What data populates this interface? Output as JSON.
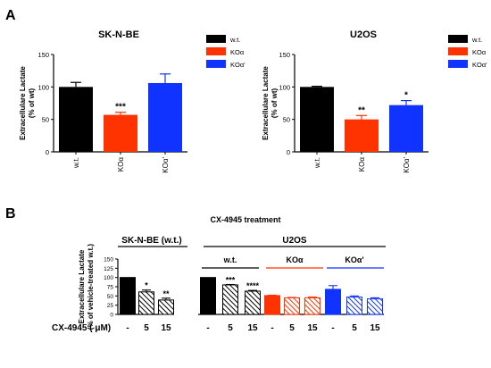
{
  "panels": {
    "a": "A",
    "b": "B"
  },
  "chart_data": [
    {
      "type": "bar",
      "panel": "A",
      "title": "SK-N-BE",
      "ylabel_lines": [
        "Extracellulare Lactate",
        "(% of wt)"
      ],
      "categories": [
        "w.t.",
        "KOα",
        "KOα'"
      ],
      "values": [
        100,
        57,
        106
      ],
      "errors": [
        7,
        4,
        14
      ],
      "colors": [
        "#000000",
        "#ff3300",
        "#1133ff"
      ],
      "significance": [
        "",
        "***",
        ""
      ],
      "ylim": [
        0,
        150
      ],
      "yticks": [
        0,
        50,
        100,
        150
      ],
      "legend": [
        "w.t.",
        "KOα",
        "KOα'"
      ],
      "legend_colors": [
        "#000000",
        "#ff3300",
        "#1133ff"
      ],
      "legend_position": "right"
    },
    {
      "type": "bar",
      "panel": "A",
      "title": "U2OS",
      "ylabel_lines": [
        "Extracellulare Lactate",
        "(% of wt)"
      ],
      "categories": [
        "w.t.",
        "KOα",
        "KOα'"
      ],
      "values": [
        100,
        50,
        72
      ],
      "errors": [
        1,
        6,
        7
      ],
      "colors": [
        "#000000",
        "#ff3300",
        "#1133ff"
      ],
      "significance": [
        "",
        "**",
        "*"
      ],
      "ylim": [
        0,
        150
      ],
      "yticks": [
        0,
        50,
        100,
        150
      ],
      "legend": [
        "w.t.",
        "KOα",
        "KOα'"
      ],
      "legend_colors": [
        "#000000",
        "#ff3300",
        "#1133ff"
      ],
      "legend_position": "right"
    },
    {
      "type": "bar",
      "panel": "B",
      "title": "CX-4945 treatment",
      "ylabel_lines": [
        "Extracellulare Lactate",
        "(% of vehicle-treated w.t.)"
      ],
      "ylim": [
        0,
        150
      ],
      "yticks": [
        0,
        25,
        50,
        75,
        100,
        125,
        150
      ],
      "xaxis_label": "CX-4945 ( μM)",
      "group_labels": {
        "sknbe": "SK-N-BE (w.t.)",
        "u2os": "U2OS",
        "wt": "w.t.",
        "koa": "KOα",
        "koap": "KOα'"
      },
      "groups": [
        {
          "name": "SK-N-BE (w.t.)",
          "dose": [
            "-",
            "5",
            "15"
          ],
          "values": [
            100,
            61,
            39
          ],
          "errors": [
            0,
            5,
            5
          ],
          "significance": [
            "",
            "*",
            "**"
          ],
          "color": "#000000"
        },
        {
          "name": "U2OS w.t.",
          "dose": [
            "-",
            "5",
            "15"
          ],
          "values": [
            100,
            80,
            63
          ],
          "errors": [
            0,
            1,
            2
          ],
          "significance": [
            "",
            "***",
            "****"
          ],
          "color": "#000000"
        },
        {
          "name": "U2OS KOα",
          "dose": [
            "-",
            "5",
            "15"
          ],
          "values": [
            51,
            45,
            45
          ],
          "errors": [
            1,
            1,
            2
          ],
          "significance": [
            "",
            "",
            ""
          ],
          "color": "#ff3300"
        },
        {
          "name": "U2OS KOα'",
          "dose": [
            "-",
            "5",
            "15"
          ],
          "values": [
            68,
            47,
            42
          ],
          "errors": [
            10,
            3,
            3
          ],
          "significance": [
            "",
            "",
            ""
          ],
          "color": "#1133ff"
        }
      ]
    }
  ]
}
